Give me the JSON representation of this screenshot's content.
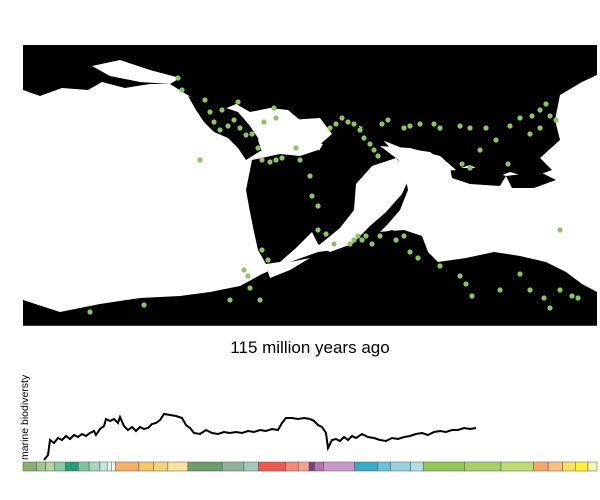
{
  "caption": "115 million years ago",
  "biodiversity_label": "marine biodiversty",
  "colors": {
    "land": "#000000",
    "ocean": "#ffffff",
    "fossil_dot": "#8fc36a"
  },
  "timescale_segments": [
    "#8cb06c",
    "#9fc58b",
    "#b3d3a0",
    "#88c8a3",
    "#2a9a7a",
    "#7fc2a4",
    "#a7d5bb",
    "#c8e6d6",
    "#e8f4ee",
    "#f0f8f4",
    "#f2b066",
    "#f7c770",
    "#f4d080",
    "#f9e2a0",
    "#6f9b68",
    "#8fb29a",
    "#a6c8b9",
    "#ec5b50",
    "#f18a77",
    "#f5a090",
    "#7a3f7c",
    "#b474b0",
    "#c898c8",
    "#3fa8c8",
    "#6cc0d8",
    "#98d2e2",
    "#b6dde4",
    "#8fc55a",
    "#a7d06a",
    "#bedb7a",
    "#f7a870",
    "#fbbf80",
    "#fde060",
    "#ffef40",
    "#fbf3b0"
  ]
}
